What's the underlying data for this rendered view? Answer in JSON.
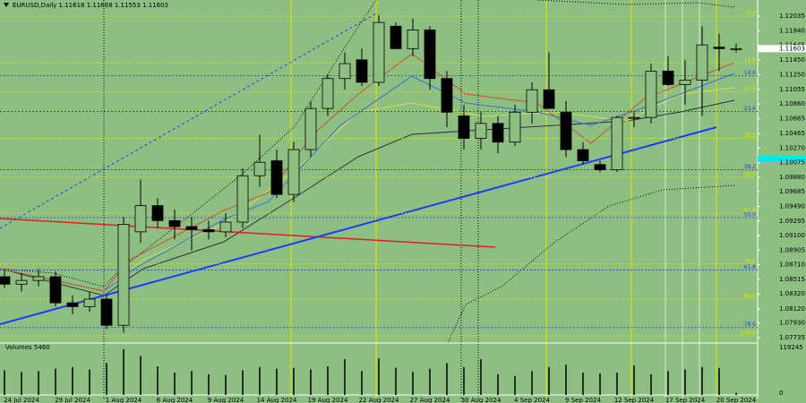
{
  "chart_data": {
    "type": "candlestick",
    "title": "EURUSD,Daily  1.11618 1.11668 1.11553 1.11603",
    "price_label": "1.11603",
    "volume_title": "Volumes 5460",
    "categories": [
      null,
      "24 Jul 2024",
      null,
      null,
      "29 Jul 2024",
      null,
      null,
      "1 Aug 2024",
      null,
      null,
      "6 Aug 2024",
      null,
      null,
      "9 Aug 2024",
      null,
      null,
      "14 Aug 2024",
      null,
      null,
      "19 Aug 2024",
      null,
      null,
      "22 Aug 2024",
      null,
      null,
      "27 Aug 2024",
      null,
      null,
      "30 Aug 2024",
      null,
      null,
      "4 Sep 2024",
      null,
      null,
      "9 Sep 2024",
      null,
      null,
      "12 Sep 2024",
      null,
      null,
      "17 Sep 2024",
      null,
      null,
      "20 Sep 2024"
    ],
    "open": [
      1.0855,
      1.0845,
      1.085,
      1.0855,
      1.082,
      1.0815,
      1.0825,
      1.079,
      1.0915,
      1.095,
      1.093,
      1.0922,
      1.0918,
      1.0915,
      1.0928,
      1.099,
      1.101,
      1.0965,
      1.1025,
      1.108,
      1.112,
      1.1145,
      1.1115,
      1.119,
      1.116,
      1.1185,
      1.112,
      1.107,
      1.104,
      1.106,
      1.1035,
      1.1075,
      1.1105,
      1.1075,
      1.1025,
      1.1005,
      1.0998,
      1.1068,
      1.1068,
      1.113,
      1.1112,
      1.1118,
      1.1162,
      1.116
    ],
    "high": [
      1.0865,
      1.086,
      1.0865,
      1.0862,
      1.083,
      1.0835,
      1.083,
      1.0935,
      1.0985,
      1.096,
      1.0945,
      1.0935,
      1.093,
      1.094,
      1.1,
      1.1045,
      1.1025,
      1.1035,
      1.109,
      1.1125,
      1.1155,
      1.116,
      1.1205,
      1.1195,
      1.12,
      1.119,
      1.113,
      1.1085,
      1.1075,
      1.107,
      1.1085,
      1.1115,
      1.1155,
      1.109,
      1.1035,
      1.101,
      1.107,
      1.1075,
      1.114,
      1.115,
      1.1145,
      1.119,
      1.118,
      1.1167
    ],
    "low": [
      1.084,
      1.0835,
      1.0842,
      1.0815,
      1.0805,
      1.0808,
      1.0785,
      1.078,
      1.09,
      1.092,
      1.0905,
      1.089,
      1.0905,
      1.0908,
      1.092,
      1.0975,
      1.096,
      1.0955,
      1.1015,
      1.107,
      1.1105,
      1.111,
      1.111,
      1.116,
      1.115,
      1.1105,
      1.1055,
      1.1025,
      1.1025,
      1.102,
      1.103,
      1.106,
      1.108,
      1.1015,
      1.1005,
      1.0995,
      1.0995,
      1.1055,
      1.106,
      1.111,
      1.1085,
      1.107,
      1.113,
      1.1155
    ],
    "close": [
      1.0845,
      1.085,
      1.0855,
      1.082,
      1.0815,
      1.0825,
      1.079,
      1.0925,
      1.095,
      1.093,
      1.0922,
      1.0918,
      1.0915,
      1.0928,
      1.099,
      1.1008,
      1.0965,
      1.1025,
      1.108,
      1.112,
      1.114,
      1.1115,
      1.1195,
      1.116,
      1.1185,
      1.112,
      1.1075,
      1.104,
      1.106,
      1.1035,
      1.1075,
      1.1105,
      1.108,
      1.1025,
      1.101,
      1.0998,
      1.1068,
      1.1068,
      1.113,
      1.1112,
      1.1118,
      1.1165,
      1.116,
      1.116
    ],
    "volume": [
      62000,
      58000,
      60000,
      66000,
      70000,
      64000,
      80000,
      115000,
      98000,
      72000,
      56000,
      60000,
      52000,
      50000,
      62000,
      70000,
      66000,
      68000,
      64000,
      72000,
      90000,
      60000,
      92000,
      68000,
      58000,
      66000,
      80000,
      70000,
      90000,
      52000,
      48000,
      60000,
      70000,
      76000,
      56000,
      54000,
      56000,
      74000,
      52000,
      60000,
      64000,
      70000,
      68000,
      5460
    ],
    "ylim": [
      1.07735,
      1.12035
    ],
    "yticks": [
      {
        "value": 1.12035,
        "label": "1.12035"
      },
      {
        "value": 1.1184,
        "label": "1.11840"
      },
      {
        "value": 1.11645,
        "label": "1.11645"
      },
      {
        "value": 1.1145,
        "label": "1.11450"
      },
      {
        "value": 1.1125,
        "label": "1.11250"
      },
      {
        "value": 1.11055,
        "label": "1.11055"
      },
      {
        "value": 1.1086,
        "label": "1.10860"
      },
      {
        "value": 1.10665,
        "label": "1.10665"
      },
      {
        "value": 1.10465,
        "label": "1.10465"
      },
      {
        "value": 1.1027,
        "label": "1.10270"
      },
      {
        "value": 1.10075,
        "label": "1.10075"
      },
      {
        "value": 1.0988,
        "label": "1.09880"
      },
      {
        "value": 1.09685,
        "label": "1.09685"
      },
      {
        "value": 1.0949,
        "label": "1.09490"
      },
      {
        "value": 1.09295,
        "label": "1.09295"
      },
      {
        "value": 1.091,
        "label": "1.09100"
      },
      {
        "value": 1.08905,
        "label": "1.08905"
      },
      {
        "value": 1.0871,
        "label": "1.08710"
      },
      {
        "value": 1.08515,
        "label": "1.08515"
      },
      {
        "value": 1.0832,
        "label": "1.08320"
      },
      {
        "value": 1.0812,
        "label": "1.08120"
      },
      {
        "value": 1.0793,
        "label": "1.07930"
      },
      {
        "value": 1.07735,
        "label": "1.07735"
      }
    ],
    "vlim": [
      0,
      119245
    ],
    "vticks": [
      119245,
      0
    ],
    "levels": [
      {
        "label": "0.0",
        "value": 1.12035,
        "color": "#e6e600"
      },
      {
        "label": "14.6",
        "value": 1.1141,
        "color": "#e6e600"
      },
      {
        "label": "14.6",
        "value": 1.1124,
        "color": "#1c3cff"
      },
      {
        "label": "23.6",
        "value": 1.1102,
        "color": "#e6e600"
      },
      {
        "label": "23.6",
        "value": 1.1076,
        "color": "#1c3cff"
      },
      {
        "label": "38.2",
        "value": 1.104,
        "color": "#e6e600"
      },
      {
        "label": "38.2",
        "value": 1.0998,
        "color": "#1c3cff"
      },
      {
        "label": "50.0",
        "value": 1.0988,
        "color": "#e6e600"
      },
      {
        "label": "61.8",
        "value": 1.094,
        "color": "#e6e600"
      },
      {
        "label": "50.0",
        "value": 1.0934,
        "color": "#1c3cff"
      },
      {
        "label": "78.6",
        "value": 1.0872,
        "color": "#e6e600"
      },
      {
        "label": "61.8",
        "value": 1.0864,
        "color": "#1c3cff"
      },
      {
        "label": "80.0",
        "value": 1.0825,
        "color": "#e6e600"
      },
      {
        "label": "78.6",
        "value": 1.0787,
        "color": "#1c3cff"
      },
      {
        "label": "100.0",
        "value": 1.0776,
        "color": "#e6e600"
      }
    ],
    "up_color": "#8dbf83",
    "down_color": "#000000"
  }
}
